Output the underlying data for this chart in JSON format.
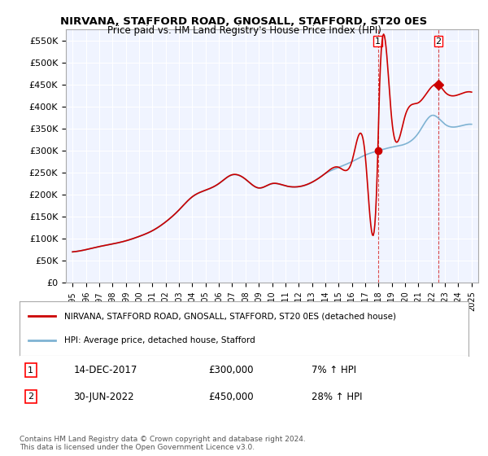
{
  "title": "NIRVANA, STAFFORD ROAD, GNOSALL, STAFFORD, ST20 0ES",
  "subtitle": "Price paid vs. HM Land Registry's House Price Index (HPI)",
  "ylabel_ticks": [
    "£0",
    "£50K",
    "£100K",
    "£150K",
    "£200K",
    "£250K",
    "£300K",
    "£350K",
    "£400K",
    "£450K",
    "£500K",
    "£550K"
  ],
  "ylim": [
    0,
    575000
  ],
  "yticks": [
    0,
    50000,
    100000,
    150000,
    200000,
    250000,
    300000,
    350000,
    400000,
    450000,
    500000,
    550000
  ],
  "xmin": 1994.5,
  "xmax": 2025.5,
  "sale1_x": 2017.95,
  "sale1_y": 300000,
  "sale1_label": "1",
  "sale2_x": 2022.5,
  "sale2_y": 450000,
  "sale2_label": "2",
  "legend_line1": "NIRVANA, STAFFORD ROAD, GNOSALL, STAFFORD, ST20 0ES (detached house)",
  "legend_line2": "HPI: Average price, detached house, Stafford",
  "annotation1_box": "1",
  "annotation1_date": "14-DEC-2017",
  "annotation1_price": "£300,000",
  "annotation1_hpi": "7% ↑ HPI",
  "annotation2_box": "2",
  "annotation2_date": "30-JUN-2022",
  "annotation2_price": "£450,000",
  "annotation2_hpi": "28% ↑ HPI",
  "footnote": "Contains HM Land Registry data © Crown copyright and database right 2024.\nThis data is licensed under the Open Government Licence v3.0.",
  "line_color_red": "#cc0000",
  "line_color_blue": "#7fb3d3",
  "background_plot": "#f0f4ff",
  "background_fig": "#ffffff",
  "grid_color": "#ffffff",
  "sale_marker_color_red": "#cc0000",
  "sale_marker_color_blue": "#5599bb"
}
